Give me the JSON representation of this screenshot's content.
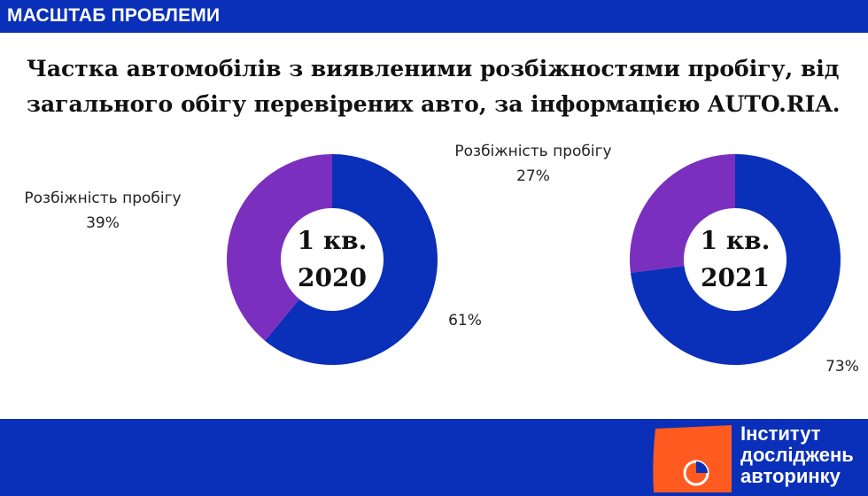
{
  "header": {
    "section_label": "МАСШТАБ ПРОБЛЕМИ"
  },
  "headline": "Частка автомобілів з виявленими розбіжностями пробігу, від загального обігу перевірених авто, за інформацією AUTO.RIA.",
  "colors": {
    "brand_blue": "#0a2fb8",
    "accent_purple": "#7b2fbe",
    "logo_orange": "#ff5a1f"
  },
  "chart_data": [
    {
      "type": "pie",
      "center_label_line1": "1 кв.",
      "center_label_line2": "2020",
      "slices": [
        {
          "label": "Розбіжність пробігу",
          "value": 39,
          "value_label": "39%",
          "color": "#7b2fbe"
        },
        {
          "label": "",
          "value": 61,
          "value_label": "61%",
          "color": "#0a2fb8"
        }
      ]
    },
    {
      "type": "pie",
      "center_label_line1": "1 кв.",
      "center_label_line2": "2021",
      "slices": [
        {
          "label": "Розбіжність пробігу",
          "value": 27,
          "value_label": "27%",
          "color": "#7b2fbe"
        },
        {
          "label": "",
          "value": 73,
          "value_label": "73%",
          "color": "#0a2fb8"
        }
      ]
    }
  ],
  "footer": {
    "logo_line1": "Інститут",
    "logo_line2": "досліджень",
    "logo_line3": "авторинку",
    "logo_icon": "pie-chart-icon"
  }
}
